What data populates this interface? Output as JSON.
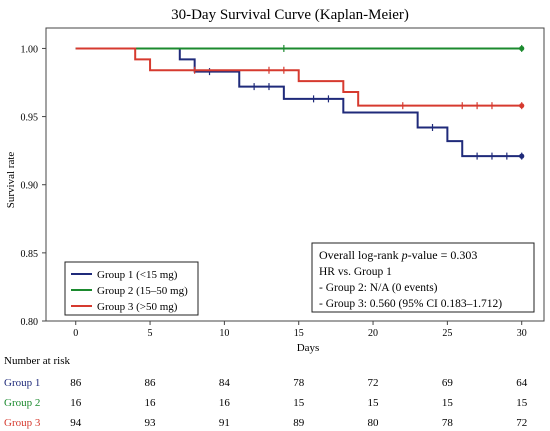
{
  "chart_data": {
    "type": "line",
    "title": "30-Day Survival Curve (Kaplan-Meier)",
    "xlabel": "Days",
    "ylabel": "Survival rate",
    "xlim": [
      -2,
      31.5
    ],
    "ylim": [
      0.8,
      1.015
    ],
    "x_ticks": [
      0,
      5,
      10,
      15,
      20,
      25,
      30
    ],
    "y_ticks": [
      0.8,
      0.85,
      0.9,
      0.95,
      1.0
    ],
    "x_tick_labels": [
      "0",
      "5",
      "10",
      "15",
      "20",
      "25",
      "30"
    ],
    "y_tick_labels": [
      "0.80",
      "0.85",
      "0.90",
      "0.95",
      "1.00"
    ],
    "grid": false,
    "legend_position": "bottom-left",
    "series": [
      {
        "name": "Group 1 (<15 mg)",
        "color": "#1f2a7a",
        "steps": [
          [
            0,
            1.0
          ],
          [
            7,
            0.992
          ],
          [
            8,
            0.983
          ],
          [
            11,
            0.972
          ],
          [
            14,
            0.963
          ],
          [
            18,
            0.953
          ],
          [
            23,
            0.942
          ],
          [
            25,
            0.932
          ],
          [
            26,
            0.921
          ],
          [
            30,
            0.921
          ]
        ],
        "censored": [
          [
            9,
            0.983
          ],
          [
            12,
            0.972
          ],
          [
            13,
            0.972
          ],
          [
            16,
            0.963
          ],
          [
            17,
            0.963
          ],
          [
            24,
            0.942
          ],
          [
            27,
            0.921
          ],
          [
            28,
            0.921
          ],
          [
            29,
            0.921
          ],
          [
            30,
            0.921
          ]
        ]
      },
      {
        "name": "Group 2 (15–50 mg)",
        "color": "#1b8a2e",
        "steps": [
          [
            0,
            1.0
          ],
          [
            30,
            1.0
          ]
        ],
        "censored": [
          [
            14,
            1.0
          ],
          [
            30,
            1.0
          ]
        ]
      },
      {
        "name": "Group 3 (>50 mg)",
        "color": "#d63a2f",
        "steps": [
          [
            0,
            1.0
          ],
          [
            4,
            0.992
          ],
          [
            5,
            0.984
          ],
          [
            15,
            0.976
          ],
          [
            18,
            0.968
          ],
          [
            19,
            0.958
          ],
          [
            30,
            0.958
          ]
        ],
        "censored": [
          [
            8,
            0.984
          ],
          [
            13,
            0.984
          ],
          [
            14,
            0.984
          ],
          [
            22,
            0.958
          ],
          [
            26,
            0.958
          ],
          [
            27,
            0.958
          ],
          [
            28,
            0.958
          ],
          [
            30,
            0.958
          ]
        ]
      }
    ],
    "annotation": {
      "pvalue_prefix": "Overall log-rank ",
      "pvalue_italic": "p",
      "pvalue_suffix": "-value = 0.303",
      "lines": [
        "HR vs. Group 1",
        "- Group 2: N/A (0 events)",
        "- Group 3: 0.560 (95% CI 0.183–1.712)"
      ]
    },
    "risk_table": {
      "title": "Number at risk",
      "times": [
        0,
        5,
        10,
        15,
        20,
        25,
        30
      ],
      "rows": [
        {
          "label": "Group 1",
          "color": "#1f2a7a",
          "values": [
            "86",
            "86",
            "84",
            "78",
            "72",
            "69",
            "64"
          ]
        },
        {
          "label": "Group 2",
          "color": "#1b8a2e",
          "values": [
            "16",
            "16",
            "16",
            "15",
            "15",
            "15",
            "15"
          ]
        },
        {
          "label": "Group 3",
          "color": "#d63a2f",
          "values": [
            "94",
            "93",
            "91",
            "89",
            "80",
            "78",
            "72"
          ]
        }
      ]
    }
  }
}
